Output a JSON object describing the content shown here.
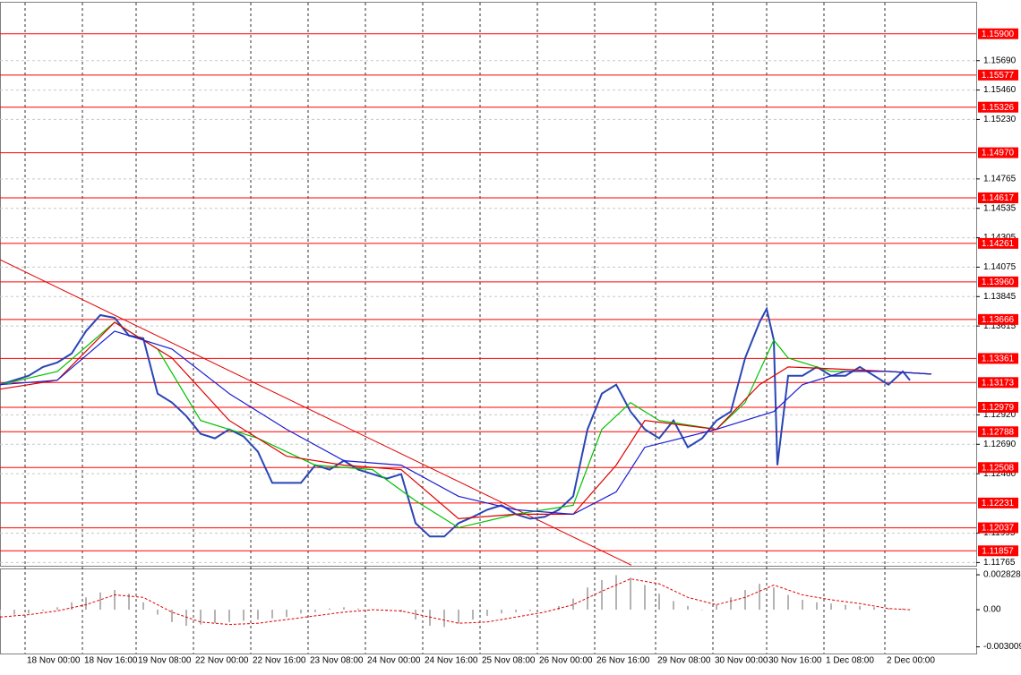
{
  "chart_data": [
    {
      "type": "line",
      "xlim": [
        0,
        272.5
      ],
      "ylim": [
        1.1174,
        1.1615
      ],
      "grid": true,
      "xticks": [
        {
          "value": 7,
          "label": "18 Nov 00:00"
        },
        {
          "value": 23,
          "label": "18 Nov 16:00"
        },
        {
          "value": 38,
          "label": "19 Nov 08:00"
        },
        {
          "value": 54,
          "label": "22 Nov 00:00"
        },
        {
          "value": 70,
          "label": "22 Nov 16:00"
        },
        {
          "value": 86,
          "label": "23 Nov 08:00"
        },
        {
          "value": 102,
          "label": "24 Nov 00:00"
        },
        {
          "value": 118,
          "label": "24 Nov 16:00"
        },
        {
          "value": 134,
          "label": "25 Nov 08:00"
        },
        {
          "value": 150,
          "label": "26 Nov 00:00"
        },
        {
          "value": 166,
          "label": "26 Nov 16:00"
        },
        {
          "value": 183,
          "label": "29 Nov 08:00"
        },
        {
          "value": 199,
          "label": "30 Nov 00:00"
        },
        {
          "value": 214,
          "label": "30 Nov 16:00"
        },
        {
          "value": 230,
          "label": "1 Dec 08:00"
        },
        {
          "value": 247,
          "label": "2 Dec 00:00"
        }
      ],
      "yticks": [
        {
          "value": 1.1569,
          "label": "1.15690"
        },
        {
          "value": 1.1546,
          "label": "1.15460"
        },
        {
          "value": 1.1523,
          "label": "1.15230"
        },
        1.14765,
        1.14535,
        1.14305,
        1.14075,
        1.13845,
        1.13615,
        {
          "value": 1.1292,
          "label": "1.12920"
        },
        {
          "value": 1.1269,
          "label": "1.12690"
        },
        {
          "value": 1.1246,
          "label": "1.12460"
        },
        1.11995,
        1.11765
      ],
      "levels": {
        "color": "#ff0000",
        "values": [
          1.159,
          1.15577,
          1.15326,
          1.1497,
          1.14617,
          1.14261,
          1.1396,
          1.13666,
          1.13361,
          1.13173,
          1.12979,
          1.12788,
          1.12508,
          1.12231,
          1.12037,
          1.11857
        ],
        "value_labels": [
          "1.15900",
          "1.15577",
          "1.15326",
          "1.14970",
          "1.14617",
          "1.14261",
          "1.13960",
          "1.13666",
          "1.13361",
          "1.13173",
          "1.12979",
          "1.12788",
          "1.12508",
          "1.12231",
          "1.12037",
          "1.11857"
        ]
      },
      "trendline": {
        "color": "#e00000",
        "x": [
          0,
          176.25
        ],
        "values": [
          1.14133,
          1.11745
        ]
      },
      "series": [
        {
          "color": "#2846b4",
          "x": [
            0,
            4,
            8,
            12,
            16,
            20,
            24,
            28,
            32,
            36,
            40,
            44,
            48,
            52,
            56,
            60,
            64,
            68,
            72,
            76,
            80,
            84,
            88,
            92,
            96,
            100,
            104,
            108,
            112,
            116,
            120,
            124,
            128,
            132,
            136,
            140,
            144,
            148,
            152,
            156,
            160,
            164,
            168,
            172,
            176,
            180,
            184,
            188,
            192,
            196,
            200,
            204,
            208,
            212,
            214,
            216,
            217,
            220,
            224,
            228,
            232,
            236,
            240,
            244,
            248,
            252,
            254
          ],
          "values": [
            1.13156,
            1.13191,
            1.13226,
            1.13295,
            1.1333,
            1.134,
            1.13575,
            1.137,
            1.13679,
            1.1354,
            1.13519,
            1.13086,
            1.13016,
            1.12911,
            1.12772,
            1.12737,
            1.12807,
            1.12751,
            1.12632,
            1.12388,
            1.12388,
            1.12388,
            1.12527,
            1.12492,
            1.12562,
            1.12492,
            1.12457,
            1.12422,
            1.12457,
            1.12073,
            1.11969,
            1.11969,
            1.12073,
            1.12122,
            1.12178,
            1.12213,
            1.12143,
            1.12108,
            1.12122,
            1.12178,
            1.12283,
            1.12807,
            1.13086,
            1.13156,
            1.12946,
            1.12807,
            1.12737,
            1.12876,
            1.12667,
            1.12737,
            1.12876,
            1.12946,
            1.13365,
            1.13644,
            1.13749,
            1.13505,
            1.12527,
            1.13226,
            1.13226,
            1.13295,
            1.13226,
            1.13226,
            1.13295,
            1.13226,
            1.13156,
            1.1326,
            1.13191
          ]
        },
        {
          "color": "#00c000",
          "x": [
            0,
            16,
            32,
            44,
            56,
            72,
            88,
            104,
            116,
            128,
            144,
            160,
            168,
            176,
            184,
            200,
            208,
            216,
            220,
            232,
            248,
            260
          ],
          "values": [
            1.13156,
            1.1326,
            1.13644,
            1.13435,
            1.12876,
            1.12737,
            1.12527,
            1.12492,
            1.12248,
            1.12038,
            1.12143,
            1.12213,
            1.12807,
            1.13016,
            1.12876,
            1.12807,
            1.13016,
            1.13505,
            1.13365,
            1.1326,
            1.1326,
            1.13239
          ]
        },
        {
          "color": "#e00000",
          "x": [
            0,
            16,
            32,
            48,
            64,
            80,
            96,
            112,
            128,
            144,
            160,
            172,
            180,
            200,
            212,
            220,
            232,
            248,
            260
          ],
          "values": [
            1.13121,
            1.13191,
            1.13644,
            1.13365,
            1.12876,
            1.12597,
            1.12527,
            1.12492,
            1.12108,
            1.12143,
            1.12143,
            1.12527,
            1.12876,
            1.12807,
            1.13156,
            1.13295,
            1.13281,
            1.1326,
            1.13239
          ]
        },
        {
          "color": "#1c1cd0",
          "x": [
            0,
            16,
            32,
            48,
            64,
            80,
            96,
            112,
            128,
            144,
            160,
            172,
            180,
            200,
            216,
            224,
            236,
            248,
            260
          ],
          "values": [
            1.13156,
            1.13191,
            1.13575,
            1.13435,
            1.13086,
            1.12807,
            1.12562,
            1.12527,
            1.12283,
            1.12178,
            1.12143,
            1.12318,
            1.12667,
            1.12807,
            1.12946,
            1.13156,
            1.1326,
            1.1326,
            1.13239
          ]
        }
      ]
    },
    {
      "type": "bar",
      "color": "#b4b4b4",
      "xlim": [
        0,
        272.5
      ],
      "ylim": [
        -0.00355,
        0.00334
      ],
      "yticks": [
        0.002828,
        {
          "value": 0,
          "label": "0.00"
        },
        -0.003009
      ],
      "x": [
        0,
        4,
        8,
        12,
        16,
        20,
        24,
        28,
        32,
        36,
        40,
        44,
        48,
        52,
        56,
        60,
        64,
        68,
        72,
        76,
        80,
        84,
        88,
        92,
        96,
        100,
        104,
        108,
        112,
        116,
        120,
        124,
        128,
        132,
        136,
        140,
        144,
        148,
        152,
        156,
        160,
        164,
        168,
        172,
        176,
        180,
        184,
        188,
        192,
        196,
        200,
        204,
        208,
        212,
        216,
        220,
        224,
        228,
        232,
        236,
        240,
        244,
        248,
        252
      ],
      "values": [
        -0.0005,
        -0.0004,
        -0.0003,
        -0.0001,
        0.0002,
        0.0006,
        0.001,
        0.0014,
        0.0016,
        0.0013,
        0.0006,
        -0.0004,
        -0.001,
        -0.0013,
        -0.0012,
        -0.0011,
        -0.001,
        -0.0009,
        -0.0008,
        -0.0007,
        -0.0006,
        -0.0003,
        -0.0002,
        0.0001,
        0.0002,
        0.0001,
        0,
        -0.0001,
        -0.0002,
        -0.0008,
        -0.0013,
        -0.0014,
        -0.0011,
        -0.0008,
        -0.0005,
        -0.0003,
        -0.0002,
        -0.0001,
        0,
        0.0003,
        0.0009,
        0.0018,
        0.0024,
        0.0028,
        0.0026,
        0.002,
        0.0013,
        0.0007,
        0.0003,
        0,
        0.0004,
        0.001,
        0.0016,
        0.0021,
        0.0018,
        0.0012,
        0.0008,
        0.0006,
        0.0005,
        0.0004,
        0.0003,
        0.0002,
        0.0001,
        0.0001
      ],
      "signal": {
        "color": "#e00000",
        "x": [
          0,
          8,
          16,
          24,
          32,
          40,
          48,
          56,
          64,
          72,
          80,
          88,
          96,
          104,
          112,
          120,
          128,
          136,
          144,
          152,
          160,
          168,
          176,
          184,
          192,
          200,
          208,
          216,
          224,
          232,
          240,
          248,
          254
        ],
        "values": [
          -0.0006,
          -0.0004,
          -0.0001,
          0.0004,
          0.0012,
          0.001,
          -0.0002,
          -0.001,
          -0.0012,
          -0.0011,
          -0.0008,
          -0.0005,
          -0.0002,
          0,
          -0.0001,
          -0.0006,
          -0.0011,
          -0.001,
          -0.0006,
          -0.0002,
          0.0004,
          0.0015,
          0.0025,
          0.0021,
          0.001,
          0.0004,
          0.001,
          0.002,
          0.0012,
          0.0008,
          0.0005,
          0.0001,
          0
        ]
      }
    }
  ]
}
